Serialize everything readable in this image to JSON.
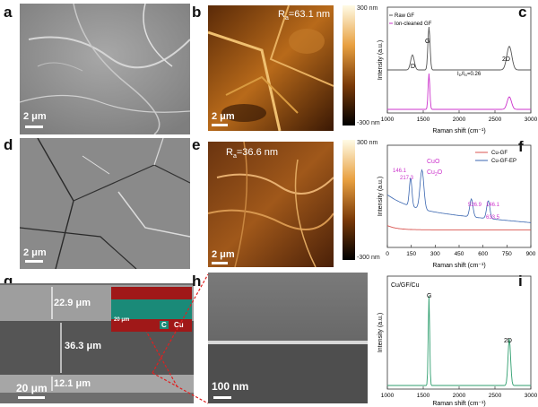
{
  "panel_labels": [
    "a",
    "b",
    "c",
    "d",
    "e",
    "f",
    "g",
    "h",
    "i"
  ],
  "scale_a": "2 μm",
  "scale_b": "2 μm",
  "scale_d": "2 μm",
  "scale_e": "2 μm",
  "scale_g": "20 μm",
  "scale_g_inset": "20 μm",
  "scale_h": "100 nm",
  "ra_b": "R",
  "ra_b_sub": "a",
  "ra_b_val": "=63.1 nm",
  "ra_e": "R",
  "ra_e_sub": "a",
  "ra_e_val": "=36.6 nm",
  "colorbar_top": "300 nm",
  "colorbar_bottom": "-300 nm",
  "g_thickness": [
    "22.9 μm",
    "36.3 μm",
    "12.1 μm"
  ],
  "g_inset_legend": [
    "C",
    "Cu"
  ],
  "colors": {
    "raw": "#555555",
    "ion": "#cc33cc",
    "cugf": "#d9534f",
    "cugfep": "#3a66b0",
    "green": "#2e9e6e"
  },
  "chart_data": [
    {
      "type": "line",
      "panel": "c",
      "xlabel": "Raman shift (cm⁻¹)",
      "ylabel": "Intensity (a.u.)",
      "xlim": [
        1000,
        3000
      ],
      "xticks": [
        "1000",
        "1500",
        "2000",
        "2500",
        "3000"
      ],
      "series": [
        {
          "name": "Raw GF"
        },
        {
          "name": "Ion-cleaned GF"
        }
      ],
      "annotations": [
        "D",
        "G",
        "2D",
        "I",
        "D",
        "/I",
        "G",
        "=0.26"
      ]
    },
    {
      "type": "line",
      "panel": "f",
      "xlabel": "Raman shift (cm⁻¹)",
      "ylabel": "Intensity (a.u.)",
      "xlim": [
        0,
        900
      ],
      "xticks": [
        "0",
        "150",
        "300",
        "450",
        "600",
        "750",
        "900"
      ],
      "series": [
        {
          "name": "Cu-GF"
        },
        {
          "name": "Cu-GF-EP"
        }
      ],
      "annotations": [
        "CuO",
        "Cu",
        "2",
        "O",
        "146.1",
        "217.3",
        "526.9",
        "146.1",
        "633.5"
      ]
    },
    {
      "type": "line",
      "panel": "i",
      "title": "Cu/GF/Cu",
      "xlabel": "Raman shift (cm⁻¹)",
      "ylabel": "Intensity (a.u.)",
      "xlim": [
        1000,
        3000
      ],
      "xticks": [
        "1000",
        "1500",
        "2000",
        "2500",
        "3000"
      ],
      "annotations": [
        "G",
        "2D"
      ]
    }
  ]
}
